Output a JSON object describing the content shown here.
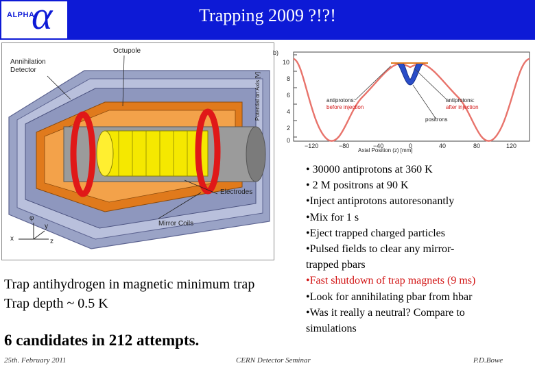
{
  "header": {
    "logo_text": "ALPHA",
    "logo_symbol": "α",
    "title": "Trapping 2009 ?!?!",
    "bg_color": "#0d1ad6"
  },
  "diagram": {
    "labels": {
      "octupole": "Octupole",
      "annihilation_1": "Annihilation",
      "annihilation_2": "Detector",
      "electrodes": "Electrodes",
      "mirror_coils": "Mirror Coils",
      "axis_x": "x",
      "axis_y": "y",
      "axis_z": "z",
      "axis_phi": "φ"
    }
  },
  "potential_plot": {
    "xlabel": "Axial Position (z) [mm]",
    "ylabel": "Potential on Axis [V]",
    "panel_tag": "b)",
    "xticks": [
      "−120",
      "−80",
      "−40",
      "0",
      "40",
      "80",
      "120"
    ],
    "yticks": [
      "10",
      "8",
      "6",
      "4",
      "2",
      "0"
    ],
    "annotations": {
      "left_1": "antiprotons:",
      "left_2": "before injection",
      "right_1": "antiprotons:",
      "right_2": "after injection",
      "positrons": "positrons"
    }
  },
  "bullets": [
    {
      "text": "• 30000 antiprotons at 360 K",
      "highlight": false
    },
    {
      "text": "• 2 M positrons at 90 K",
      "highlight": false
    },
    {
      "text": "•Inject antiprotons autoresonantly",
      "highlight": false
    },
    {
      "text": "•Mix for 1 s",
      "highlight": false
    },
    {
      "text": "•Eject trapped charged particles",
      "highlight": false
    },
    {
      "text": "•Pulsed fields to clear any mirror-",
      "highlight": false
    },
    {
      "text": "trapped pbars",
      "highlight": false
    },
    {
      "text": "•Fast shutdown of trap magnets (9 ms)",
      "highlight": true
    },
    {
      "text": "•Look for annihilating pbar from hbar",
      "highlight": false
    },
    {
      "text": "•Was it really a neutral? Compare to",
      "highlight": false
    },
    {
      "text": "simulations",
      "highlight": false
    }
  ],
  "summary": {
    "line1": "Trap antihydrogen in magnetic minimum trap",
    "line2": "Trap depth ~ 0.5 K",
    "candidates": "6 candidates in 212 attempts."
  },
  "footer": {
    "date": "25th. February 2011",
    "event": "CERN Detector Seminar",
    "author": "P.D.Bowe"
  },
  "colors": {
    "highlight": "#d21414",
    "plot_curve": "#e8736b",
    "positron_well": "#2a4dc8"
  }
}
